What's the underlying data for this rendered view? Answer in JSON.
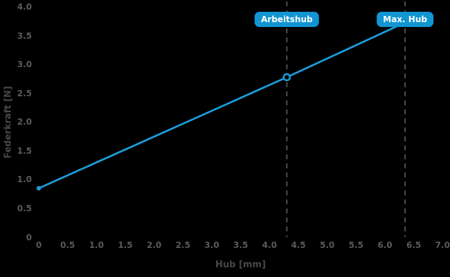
{
  "chart_data": {
    "type": "line",
    "title": "",
    "xlabel": "Hub [mm]",
    "ylabel": "Federkraft [N]",
    "xlim": [
      0,
      7
    ],
    "ylim": [
      0,
      4
    ],
    "grid": false,
    "legend": "none",
    "x_ticks": [
      "0",
      "0.5",
      "1.0",
      "1.5",
      "2.0",
      "2.5",
      "3.0",
      "3.5",
      "4.0",
      "4.5",
      "5.0",
      "5.5",
      "6.0",
      "6.5",
      "7.0"
    ],
    "x_tick_values": [
      0,
      0.5,
      1.0,
      1.5,
      2.0,
      2.5,
      3.0,
      3.5,
      4.0,
      4.5,
      5.0,
      5.5,
      6.0,
      6.5,
      7.0
    ],
    "y_ticks": [
      "0",
      "0.5",
      "1.0",
      "1.5",
      "2.0",
      "2.5",
      "3.0",
      "3.5",
      "4.0"
    ],
    "y_tick_values": [
      0,
      0.5,
      1.0,
      1.5,
      2.0,
      2.5,
      3.0,
      3.5,
      4.0
    ],
    "series": [
      {
        "name": "Federkraft",
        "color": "#1b9cd8",
        "points": [
          {
            "x": 0,
            "y": 0.85
          },
          {
            "x": 4.3,
            "y": 2.78
          },
          {
            "x": 6.35,
            "y": 3.73
          }
        ],
        "markers": [
          {
            "x": 0,
            "y": 0.85,
            "style": "dot"
          },
          {
            "x": 4.3,
            "y": 2.78,
            "style": "open-circle"
          }
        ]
      }
    ],
    "vlines": [
      {
        "x": 4.3,
        "label": "Arbeitshub",
        "style": "dashed",
        "color": "#4f4f4f"
      },
      {
        "x": 6.35,
        "label": "Max. Hub",
        "style": "dashed",
        "color": "#4f4f4f"
      }
    ],
    "colors": {
      "background": "#000000",
      "line": "#1b9cd8",
      "annotation_bg": "#1295d3",
      "annotation_text": "#ffffff",
      "tick_text": "#5a5a5a",
      "axis_title_text": "#474747",
      "dashed_line": "#4f4f4f"
    }
  }
}
